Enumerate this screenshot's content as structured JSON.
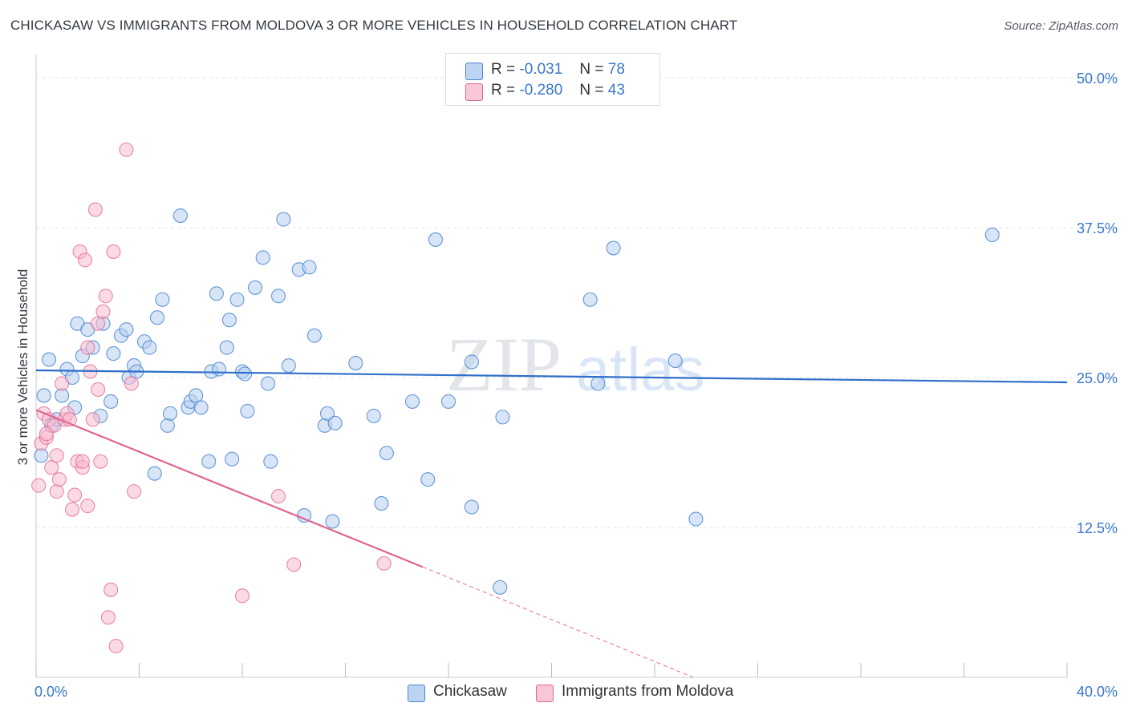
{
  "title": "CHICKASAW VS IMMIGRANTS FROM MOLDOVA 3 OR MORE VEHICLES IN HOUSEHOLD CORRELATION CHART",
  "source": "Source: ZipAtlas.com",
  "watermark": {
    "zip": "ZIP",
    "atlas": "atlas"
  },
  "colors": {
    "blue": "#4a86d0",
    "blue_fill": "#b7d0f0",
    "blue_line": "#2f6fc9",
    "pink": "#e0648f",
    "pink_fill": "#f7bcd0",
    "pink_line": "#e0648f",
    "axis_label": "#3a78c9",
    "grid": "#e3e6ea"
  },
  "legend": {
    "rows": [
      {
        "r_label": "R =",
        "r_value": "-0.031",
        "n_label": "N =",
        "n_value": "78"
      },
      {
        "r_label": "R =",
        "r_value": "-0.280",
        "n_label": "N =",
        "n_value": "43"
      }
    ]
  },
  "bottom_legend": {
    "series1": "Chickasaw",
    "series2": "Immigrants from Moldova"
  },
  "chart_data": {
    "type": "scatter",
    "title": "CHICKASAW VS IMMIGRANTS FROM MOLDOVA 3 OR MORE VEHICLES IN HOUSEHOLD CORRELATION CHART",
    "xlabel": "",
    "ylabel": "3 or more Vehicles in Household",
    "xlim": [
      0,
      40
    ],
    "ylim": [
      0,
      50
    ],
    "x_tick_labels": [
      "0.0%",
      "40.0%"
    ],
    "y_tick_values": [
      12.5,
      25.0,
      37.5,
      50.0
    ],
    "y_tick_labels": [
      "12.5%",
      "25.0%",
      "37.5%",
      "50.0%"
    ],
    "grid": true,
    "legend_position": "top-center",
    "series": [
      {
        "name": "Chickasaw",
        "color": "#4a86d0",
        "trend": {
          "x": [
            0,
            40
          ],
          "y": [
            25.6,
            24.6
          ],
          "dashed_from": null
        },
        "points": [
          [
            0.3,
            23.5
          ],
          [
            0.5,
            26.5
          ],
          [
            0.6,
            21.0
          ],
          [
            0.8,
            21.5
          ],
          [
            1.0,
            23.5
          ],
          [
            1.2,
            25.7
          ],
          [
            1.4,
            25.0
          ],
          [
            1.5,
            22.5
          ],
          [
            1.6,
            29.5
          ],
          [
            1.8,
            26.8
          ],
          [
            2.0,
            29.0
          ],
          [
            2.2,
            27.5
          ],
          [
            2.5,
            21.8
          ],
          [
            2.6,
            29.5
          ],
          [
            2.9,
            23.0
          ],
          [
            3.0,
            27.0
          ],
          [
            3.3,
            28.5
          ],
          [
            3.5,
            29.0
          ],
          [
            3.6,
            25.0
          ],
          [
            3.8,
            26.0
          ],
          [
            3.9,
            25.5
          ],
          [
            4.2,
            28.0
          ],
          [
            4.4,
            27.5
          ],
          [
            4.6,
            17.0
          ],
          [
            4.7,
            30.0
          ],
          [
            4.9,
            31.5
          ],
          [
            5.1,
            21.0
          ],
          [
            5.2,
            22.0
          ],
          [
            5.6,
            38.5
          ],
          [
            5.9,
            22.5
          ],
          [
            6.0,
            23.0
          ],
          [
            6.2,
            23.5
          ],
          [
            6.4,
            22.5
          ],
          [
            6.7,
            18.0
          ],
          [
            6.8,
            25.5
          ],
          [
            7.0,
            32.0
          ],
          [
            7.1,
            25.7
          ],
          [
            7.4,
            27.5
          ],
          [
            7.5,
            29.8
          ],
          [
            7.6,
            18.2
          ],
          [
            7.8,
            31.5
          ],
          [
            8.0,
            25.5
          ],
          [
            8.1,
            25.3
          ],
          [
            8.2,
            22.2
          ],
          [
            8.5,
            32.5
          ],
          [
            8.8,
            35.0
          ],
          [
            9.0,
            24.5
          ],
          [
            9.1,
            18.0
          ],
          [
            9.4,
            31.8
          ],
          [
            9.6,
            38.2
          ],
          [
            9.8,
            26.0
          ],
          [
            10.2,
            34.0
          ],
          [
            10.4,
            13.5
          ],
          [
            10.6,
            34.2
          ],
          [
            10.8,
            28.5
          ],
          [
            11.2,
            21.0
          ],
          [
            11.3,
            22.0
          ],
          [
            11.5,
            13.0
          ],
          [
            11.6,
            21.2
          ],
          [
            12.4,
            26.2
          ],
          [
            13.1,
            21.8
          ],
          [
            13.4,
            14.5
          ],
          [
            13.6,
            18.7
          ],
          [
            14.6,
            23.0
          ],
          [
            15.2,
            16.5
          ],
          [
            15.5,
            36.5
          ],
          [
            16.0,
            23.0
          ],
          [
            16.9,
            26.3
          ],
          [
            16.9,
            14.2
          ],
          [
            18.0,
            7.5
          ],
          [
            18.1,
            21.7
          ],
          [
            21.5,
            31.5
          ],
          [
            21.8,
            24.5
          ],
          [
            22.4,
            35.8
          ],
          [
            24.8,
            26.4
          ],
          [
            25.6,
            13.2
          ],
          [
            37.1,
            36.9
          ],
          [
            0.2,
            18.5
          ]
        ]
      },
      {
        "name": "Immigrants from Moldova",
        "color": "#e0648f",
        "trend": {
          "x": [
            0,
            15.0
          ],
          "y": [
            22.3,
            9.2
          ],
          "dashed_to": [
            25.5,
            0.0
          ]
        },
        "points": [
          [
            0.1,
            16.0
          ],
          [
            0.2,
            19.5
          ],
          [
            0.3,
            22.0
          ],
          [
            0.4,
            20.0
          ],
          [
            0.5,
            21.5
          ],
          [
            0.6,
            17.5
          ],
          [
            0.7,
            21.0
          ],
          [
            0.8,
            18.5
          ],
          [
            0.8,
            15.5
          ],
          [
            0.9,
            16.5
          ],
          [
            1.0,
            24.5
          ],
          [
            1.1,
            21.5
          ],
          [
            1.2,
            22.0
          ],
          [
            1.3,
            21.5
          ],
          [
            1.4,
            14.0
          ],
          [
            1.5,
            15.2
          ],
          [
            1.6,
            18.0
          ],
          [
            1.7,
            35.5
          ],
          [
            1.8,
            17.5
          ],
          [
            1.8,
            18.0
          ],
          [
            1.9,
            34.8
          ],
          [
            2.0,
            27.5
          ],
          [
            2.0,
            14.3
          ],
          [
            2.1,
            25.5
          ],
          [
            2.2,
            21.5
          ],
          [
            2.3,
            39.0
          ],
          [
            2.4,
            24.0
          ],
          [
            2.4,
            29.5
          ],
          [
            2.6,
            30.5
          ],
          [
            2.5,
            18.0
          ],
          [
            2.7,
            31.8
          ],
          [
            2.8,
            5.0
          ],
          [
            2.9,
            7.3
          ],
          [
            3.0,
            35.5
          ],
          [
            3.5,
            44.0
          ],
          [
            3.7,
            24.5
          ],
          [
            3.8,
            15.5
          ],
          [
            3.1,
            2.6
          ],
          [
            8.0,
            6.8
          ],
          [
            9.4,
            15.1
          ],
          [
            10.0,
            9.4
          ],
          [
            13.5,
            9.5
          ],
          [
            0.4,
            20.3
          ]
        ]
      }
    ]
  }
}
